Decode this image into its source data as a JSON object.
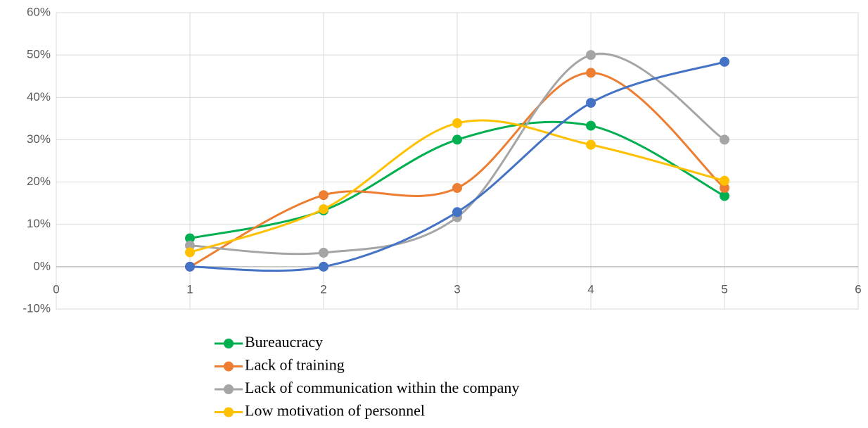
{
  "chart_data": {
    "type": "scatter-smooth",
    "x": [
      1,
      2,
      3,
      4,
      5
    ],
    "xlim": [
      0,
      6
    ],
    "xticks": [
      0,
      1,
      2,
      3,
      4,
      5,
      6
    ],
    "ylim": [
      -10,
      60
    ],
    "yticks": [
      {
        "value": -10,
        "label": "-10%"
      },
      {
        "value": 0,
        "label": "0%"
      },
      {
        "value": 10,
        "label": "10%"
      },
      {
        "value": 20,
        "label": "20%"
      },
      {
        "value": 30,
        "label": "30%"
      },
      {
        "value": 40,
        "label": "40%"
      },
      {
        "value": 50,
        "label": "50%"
      },
      {
        "value": 60,
        "label": "60%"
      }
    ],
    "grid": true,
    "legend": "bottom",
    "series": [
      {
        "name": "Bureaucracy",
        "color": "#00b050",
        "values": [
          6.7,
          13.3,
          30,
          33.3,
          16.7
        ]
      },
      {
        "name": "Lack of training",
        "color": "#ed7d31",
        "values": [
          0,
          16.9,
          18.6,
          45.8,
          18.6
        ]
      },
      {
        "name": "Lack of communication within the company",
        "color": "#a5a5a5",
        "values": [
          5,
          3.3,
          11.7,
          50,
          30
        ]
      },
      {
        "name": "Low motivation of personnel",
        "color": "#ffc000",
        "values": [
          3.4,
          13.6,
          33.9,
          28.8,
          20.3
        ]
      },
      {
        "color": "#4472c4",
        "values": [
          0,
          0,
          12.9,
          38.7,
          48.4
        ]
      }
    ]
  }
}
